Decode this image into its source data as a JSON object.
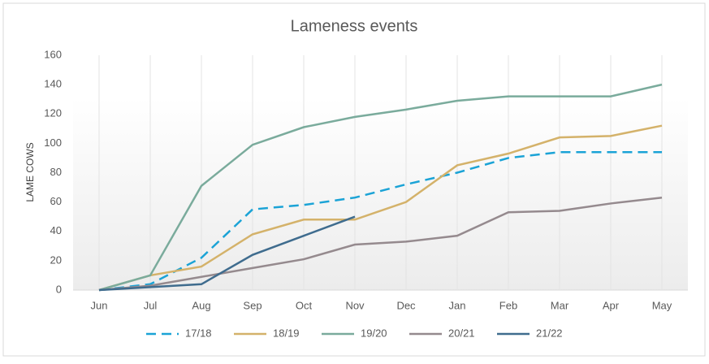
{
  "chart_data": {
    "type": "line",
    "title": "Lameness events",
    "y_label": "LAME COWS",
    "categories": [
      "Jun",
      "Jul",
      "Aug",
      "Sep",
      "Oct",
      "Nov",
      "Dec",
      "Jan",
      "Feb",
      "Mar",
      "Apr",
      "May"
    ],
    "series": [
      {
        "name": "17/18",
        "color": "#1ba3d6",
        "dashed": true,
        "values": [
          0,
          4,
          22,
          55,
          58,
          63,
          72,
          80,
          90,
          94,
          94,
          94
        ]
      },
      {
        "name": "18/19",
        "color": "#d4b26a",
        "dashed": false,
        "values": [
          0,
          10,
          16,
          38,
          48,
          48,
          60,
          85,
          93,
          104,
          105,
          112
        ]
      },
      {
        "name": "19/20",
        "color": "#7aab9c",
        "dashed": false,
        "values": [
          0,
          10,
          71,
          99,
          111,
          118,
          123,
          129,
          132,
          132,
          132,
          140
        ]
      },
      {
        "name": "20/21",
        "color": "#958a8e",
        "dashed": false,
        "values": [
          0,
          3,
          9,
          15,
          21,
          31,
          33,
          37,
          53,
          54,
          59,
          63
        ]
      },
      {
        "name": "21/22",
        "color": "#3f6c8e",
        "dashed": false,
        "values": [
          0,
          2,
          4,
          24,
          37,
          50,
          null,
          null,
          null,
          null,
          null,
          null
        ]
      }
    ],
    "ylim": [
      0,
      160
    ],
    "yticks": [
      0,
      20,
      40,
      60,
      80,
      100,
      120,
      140,
      160
    ],
    "grid": true,
    "legend": "bottom"
  }
}
